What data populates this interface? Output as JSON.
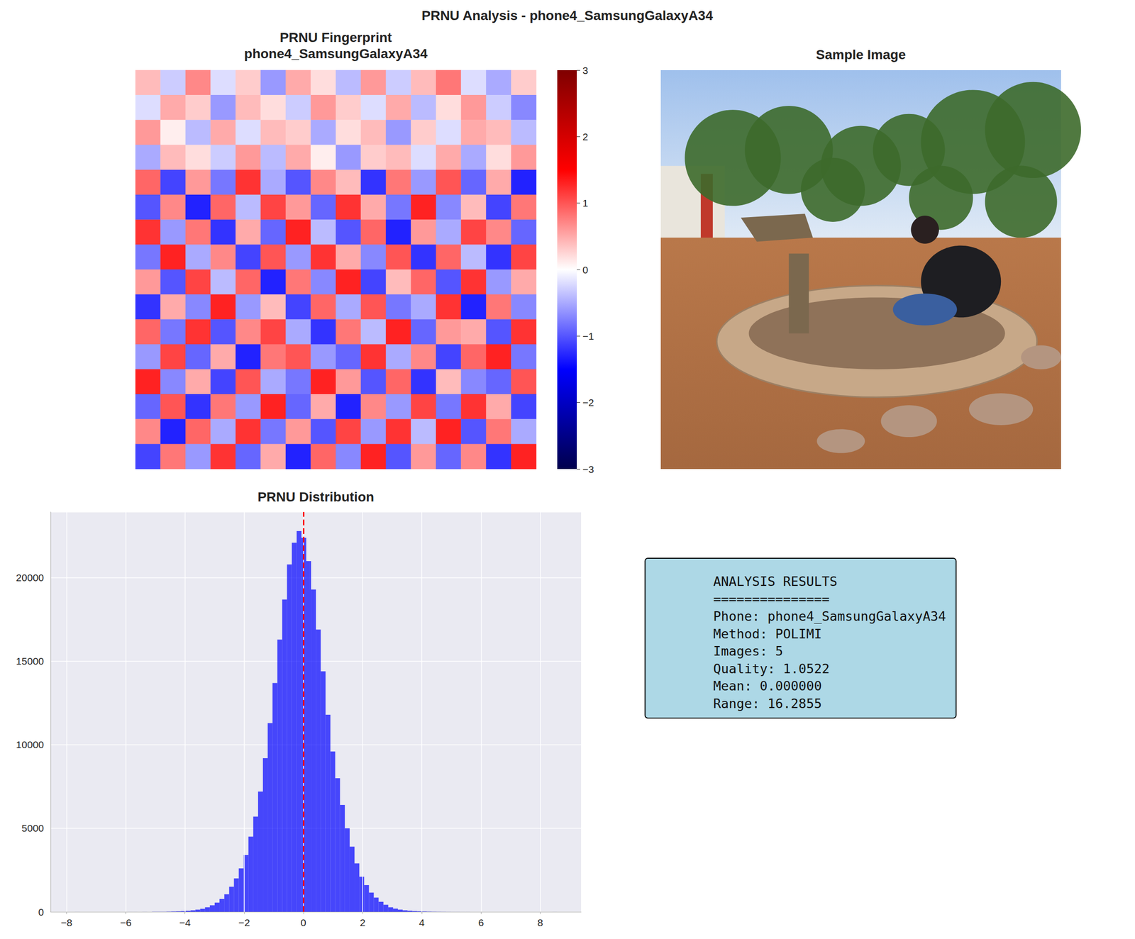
{
  "title": "PRNU Analysis - phone4_SamsungGalaxyA34",
  "chart_data": [
    {
      "type": "heatmap",
      "title": "PRNU Fingerprint\nphone4_SamsungGalaxyA34",
      "tick_labels": false,
      "cells": [
        [
          0.4,
          -0.3,
          0.7,
          -0.2,
          0.3,
          -0.6,
          0.5,
          0.2,
          -0.4,
          0.6,
          -0.3,
          0.4,
          0.8,
          -0.2,
          -0.5,
          0.3
        ],
        [
          -0.2,
          0.5,
          0.3,
          -0.6,
          0.4,
          0.2,
          -0.3,
          0.6,
          0.3,
          -0.2,
          0.5,
          -0.4,
          0.2,
          0.6,
          -0.3,
          -0.7
        ],
        [
          0.6,
          0.1,
          -0.4,
          0.5,
          -0.2,
          0.4,
          0.3,
          -0.5,
          0.2,
          0.4,
          -0.6,
          0.3,
          -0.2,
          0.5,
          0.4,
          -0.4
        ],
        [
          -0.5,
          0.4,
          0.2,
          -0.3,
          0.6,
          -0.4,
          0.5,
          0.1,
          -0.6,
          0.3,
          0.4,
          -0.2,
          0.5,
          -0.5,
          0.2,
          0.6
        ],
        [
          0.9,
          -1.1,
          0.6,
          -0.8,
          1.2,
          -0.5,
          -1.0,
          0.7,
          0.4,
          -1.2,
          0.8,
          -0.6,
          1.0,
          -0.9,
          0.5,
          -1.3
        ],
        [
          -1.0,
          0.7,
          -1.3,
          0.9,
          -0.4,
          1.1,
          0.6,
          -0.9,
          1.2,
          0.5,
          -0.8,
          1.3,
          -0.7,
          0.4,
          -1.1,
          0.8
        ],
        [
          1.2,
          -0.6,
          0.8,
          -1.2,
          0.5,
          -0.9,
          1.3,
          -0.4,
          -1.0,
          0.9,
          -1.3,
          0.6,
          -0.5,
          1.1,
          0.7,
          -0.9
        ],
        [
          -0.8,
          1.3,
          -0.5,
          0.7,
          -1.1,
          1.0,
          -0.6,
          1.2,
          0.5,
          -0.7,
          1.0,
          -1.2,
          0.9,
          -0.4,
          -1.2,
          1.1
        ],
        [
          0.6,
          -1.0,
          1.1,
          -0.4,
          0.9,
          -1.3,
          0.8,
          -0.7,
          1.3,
          -1.1,
          0.4,
          0.9,
          -1.0,
          1.2,
          -0.6,
          0.5
        ],
        [
          -1.2,
          0.5,
          -0.7,
          1.3,
          -0.6,
          0.4,
          -1.1,
          0.9,
          -0.5,
          1.0,
          -0.8,
          -0.5,
          1.2,
          -1.3,
          0.8,
          -0.7
        ],
        [
          0.9,
          -0.8,
          1.2,
          -1.0,
          0.7,
          1.1,
          -0.5,
          -1.2,
          0.8,
          -0.4,
          1.3,
          -0.9,
          0.6,
          0.5,
          -1.0,
          1.2
        ],
        [
          -0.6,
          1.1,
          -0.9,
          0.5,
          -1.3,
          0.8,
          1.0,
          -0.6,
          -0.9,
          1.2,
          -0.5,
          0.7,
          -1.1,
          0.9,
          1.3,
          -0.8
        ],
        [
          1.3,
          -0.7,
          0.5,
          -1.1,
          1.0,
          -0.5,
          -0.8,
          1.3,
          0.6,
          -1.0,
          0.9,
          -1.2,
          0.4,
          -0.7,
          -0.9,
          1.0
        ],
        [
          -0.9,
          1.0,
          -1.2,
          0.8,
          -0.6,
          1.3,
          -0.9,
          0.5,
          -1.3,
          0.7,
          -0.6,
          1.1,
          -0.8,
          1.2,
          0.5,
          -1.1
        ],
        [
          0.7,
          -1.3,
          0.9,
          -0.5,
          1.2,
          -0.8,
          0.6,
          -1.0,
          1.1,
          -0.6,
          1.2,
          -0.4,
          1.3,
          -1.0,
          0.8,
          -0.5
        ],
        [
          -1.1,
          0.8,
          -0.6,
          1.2,
          -0.9,
          0.5,
          -1.3,
          0.9,
          -0.7,
          1.3,
          -1.0,
          0.6,
          -0.9,
          0.7,
          -1.2,
          1.3
        ]
      ],
      "colorbar": {
        "range": [
          -3,
          3
        ],
        "ticks": [
          {
            "value": -3,
            "label": "−3"
          },
          {
            "value": -2,
            "label": "−2"
          },
          {
            "value": -1,
            "label": "−1"
          },
          0,
          1,
          2,
          3
        ]
      }
    },
    {
      "type": "image",
      "title": "Sample Image"
    },
    {
      "type": "histogram",
      "title": "PRNU Distribution",
      "color": "#0000ff",
      "grid": true,
      "bins": [
        -7.72,
        -7.557,
        -7.394,
        -7.231,
        -7.069,
        -6.906,
        -6.743,
        -6.58,
        -6.417,
        -6.254,
        -6.091,
        -5.929,
        -5.766,
        -5.603,
        -5.44,
        -5.277,
        -5.114,
        -4.951,
        -4.789,
        -4.626,
        -4.463,
        -4.3,
        -4.137,
        -3.974,
        -3.811,
        -3.649,
        -3.486,
        -3.323,
        -3.16,
        -2.997,
        -2.834,
        -2.671,
        -2.508,
        -2.346,
        -2.183,
        -2.02,
        -1.857,
        -1.694,
        -1.531,
        -1.368,
        -1.206,
        -1.043,
        -0.88,
        -0.717,
        -0.554,
        -0.391,
        -0.228,
        -0.066,
        0.097,
        0.26,
        0.423,
        0.586,
        0.749,
        0.912,
        1.074,
        1.237,
        1.4,
        1.563,
        1.726,
        1.889,
        2.052,
        2.214,
        2.377,
        2.54,
        2.703,
        2.866,
        3.029,
        3.192,
        3.354,
        3.517,
        3.68,
        3.843,
        4.006,
        4.169,
        4.332,
        4.494,
        4.657,
        4.82,
        4.983,
        5.146,
        5.309,
        5.472,
        5.634,
        5.797,
        5.96,
        6.123,
        6.286,
        6.449,
        6.612,
        6.775,
        6.937,
        7.1,
        7.263,
        7.426,
        7.589,
        7.752,
        7.915,
        8.077,
        8.24,
        8.403,
        8.566
      ],
      "counts": [
        1,
        0,
        0,
        0,
        0,
        0,
        0,
        0,
        0,
        0,
        0,
        1,
        1,
        2,
        2,
        3,
        5,
        7,
        10,
        14,
        22,
        32,
        45,
        62,
        90,
        130,
        180,
        270,
        390,
        550,
        770,
        1050,
        1500,
        2000,
        2600,
        3400,
        4500,
        5700,
        7200,
        9200,
        11300,
        13700,
        16300,
        18700,
        20800,
        22100,
        22800,
        22400,
        21000,
        19300,
        16900,
        14400,
        11800,
        9600,
        8000,
        6400,
        5000,
        3900,
        2900,
        2100,
        1600,
        1150,
        850,
        600,
        420,
        270,
        190,
        130,
        90,
        65,
        45,
        32,
        22,
        15,
        10,
        7,
        5,
        3,
        2,
        2,
        1,
        1,
        0,
        0,
        0,
        0,
        0,
        0,
        0,
        0,
        0,
        0,
        0,
        0,
        0,
        0,
        0,
        0,
        0,
        1
      ],
      "xlim": [
        -8.54,
        9.38
      ],
      "xticks": [
        {
          "value": -8,
          "label": "−8"
        },
        {
          "value": -6,
          "label": "−6"
        },
        {
          "value": -4,
          "label": "−4"
        },
        {
          "value": -2,
          "label": "−2"
        },
        0,
        2,
        4,
        6,
        8
      ],
      "ylim": [
        0,
        23940
      ],
      "yticks": [
        0,
        5000,
        10000,
        15000,
        20000
      ],
      "vline": {
        "x": 0,
        "color": "#ff0000",
        "line_style": "dashed"
      }
    }
  ],
  "text_box": {
    "lines": [
      "ANALYSIS RESULTS",
      "===============",
      "Phone: phone4_SamsungGalaxyA34",
      "Method: POLIMI",
      "Images: 5",
      "Quality: 1.0522",
      "Mean: 0.000000",
      "Range: 16.2855"
    ]
  }
}
